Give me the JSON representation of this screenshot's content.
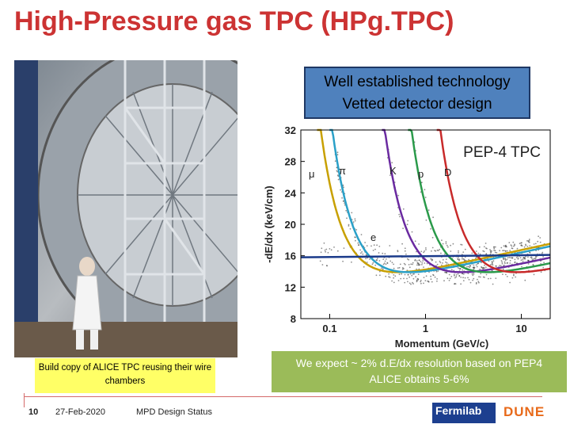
{
  "slide": {
    "title": "High-Pressure gas TPC (HPg.TPC)",
    "photo_caption": "Build copy of ALICE TPC reusing their wire chambers",
    "blue_box": {
      "line1": "Well established technology",
      "line2": "Vetted detector design"
    },
    "green_box": {
      "line1": "We expect ~ 2% d.E/dx resolution based on PEP4",
      "line2": "ALICE obtains 5-6%"
    },
    "footer": {
      "page": "10",
      "date": "27-Feb-2020",
      "title": "MPD Design Status",
      "fermilab": "Fermilab",
      "dune": "DUNE"
    }
  },
  "chart_data": {
    "type": "scatter",
    "title": "PEP-4 TPC",
    "xlabel": "Momentum (GeV/c)",
    "ylabel": "-dE/dx (keV/cm)",
    "xscale": "log",
    "xlim": [
      0.05,
      20
    ],
    "ylim": [
      8,
      32
    ],
    "x_ticks": [
      "0.1",
      "1",
      "10"
    ],
    "y_ticks": [
      "8",
      "12",
      "16",
      "20",
      "24",
      "28",
      "32"
    ],
    "particle_labels": [
      "μ",
      "π",
      "K",
      "p",
      "D",
      "e"
    ],
    "curve_colors": {
      "mu": "#c8a000",
      "pi": "#2aa0c8",
      "K": "#6a2aa0",
      "p": "#2a9a4a",
      "D": "#c82a2a",
      "e": "#1a3a8a"
    },
    "legend": "none"
  }
}
